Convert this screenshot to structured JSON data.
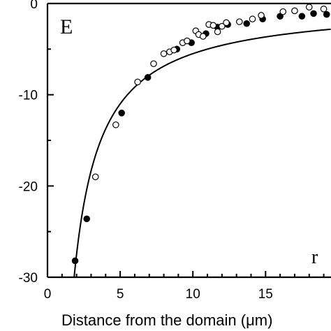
{
  "chart_data": {
    "type": "scatter",
    "panel_label": "E",
    "x_variable_label": "r",
    "xlabel": "Distance from the domain (μm)",
    "ylabel": "",
    "xlim": [
      0,
      19.5
    ],
    "ylim": [
      -30,
      0
    ],
    "x_ticks": [
      0,
      5,
      10,
      15
    ],
    "y_ticks": [
      0,
      -10,
      -20,
      -30
    ],
    "grid": false,
    "series": [
      {
        "marker": "filled",
        "points": [
          [
            1.9,
            -28.2
          ],
          [
            2.7,
            -23.6
          ],
          [
            5.1,
            -12.0
          ],
          [
            6.9,
            -8.1
          ],
          [
            8.9,
            -5.0
          ],
          [
            9.9,
            -4.3
          ],
          [
            10.9,
            -3.3
          ],
          [
            11.7,
            -2.6
          ],
          [
            12.4,
            -2.3
          ],
          [
            13.7,
            -2.2
          ],
          [
            14.8,
            -1.7
          ],
          [
            16.0,
            -1.4
          ],
          [
            17.5,
            -1.4
          ],
          [
            18.3,
            -1.1
          ],
          [
            19.2,
            -1.2
          ]
        ]
      },
      {
        "marker": "open",
        "points": [
          [
            3.3,
            -19.0
          ],
          [
            4.7,
            -13.3
          ],
          [
            6.2,
            -8.6
          ],
          [
            7.3,
            -6.6
          ],
          [
            8.0,
            -5.5
          ],
          [
            8.4,
            -5.3
          ],
          [
            8.7,
            -5.1
          ],
          [
            9.3,
            -4.3
          ],
          [
            9.6,
            -4.1
          ],
          [
            10.2,
            -3.0
          ],
          [
            10.4,
            -3.4
          ],
          [
            10.7,
            -3.6
          ],
          [
            11.1,
            -2.3
          ],
          [
            11.4,
            -2.4
          ],
          [
            11.7,
            -3.1
          ],
          [
            12.0,
            -2.5
          ],
          [
            12.3,
            -2.1
          ],
          [
            13.2,
            -2.0
          ],
          [
            14.1,
            -1.7
          ],
          [
            14.7,
            -1.3
          ],
          [
            16.2,
            -0.9
          ],
          [
            17.0,
            -0.8
          ],
          [
            18.0,
            -0.4
          ],
          [
            19.0,
            -0.6
          ]
        ]
      }
    ],
    "fit_curve": {
      "style": "solid",
      "model": "y = -55 / x"
    }
  }
}
